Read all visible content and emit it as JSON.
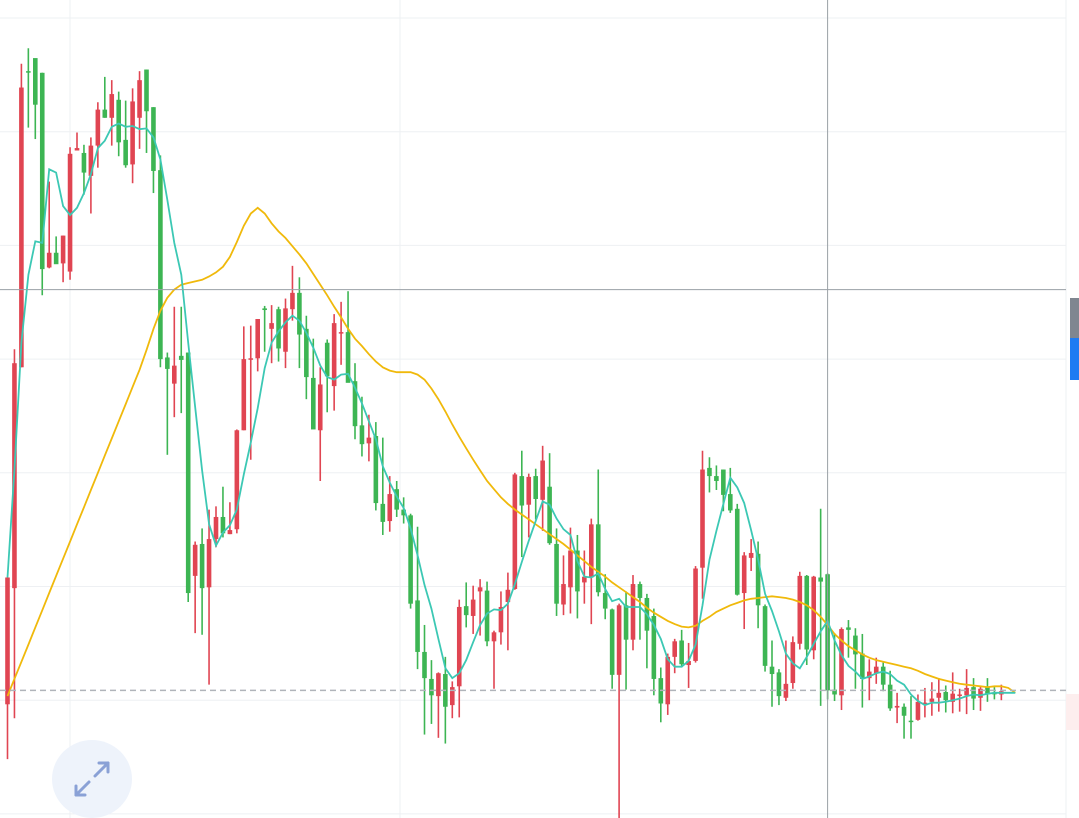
{
  "chart_data": {
    "type": "candlestick",
    "title": "",
    "xlabel": "",
    "ylabel": "",
    "grid": true,
    "legend": "none",
    "ylim": [
      0,
      100
    ],
    "colors": {
      "up": "#3db553",
      "down": "#e04552",
      "ma_fast": "#3cc8b4",
      "ma_slow": "#f0b90b",
      "grid": "#eef0f3",
      "crosshair": "#9aa0a6",
      "last_price_line": "#b0b4ba"
    },
    "candles": [
      [
        29.4,
        13.9,
        28.2,
        7.2
      ],
      [
        55.6,
        28.1,
        57.3,
        12.2
      ],
      [
        89.3,
        55.1,
        92.2,
        55.1
      ],
      [
        91.2,
        91.3,
        94.1,
        84.4
      ],
      [
        87.2,
        92.9,
        92.8,
        83.0
      ],
      [
        67.1,
        91.1,
        91.1,
        63.9
      ],
      [
        69.1,
        67.3,
        77.8,
        67.2
      ],
      [
        67.7,
        69.1,
        71.1,
        68.7
      ],
      [
        71.2,
        67.8,
        71.2,
        65.5
      ],
      [
        81.2,
        66.8,
        82.0,
        65.8
      ],
      [
        81.9,
        81.6,
        83.8,
        81.6
      ],
      [
        78.9,
        81.3,
        82.3,
        76.2
      ],
      [
        82.2,
        78.5,
        83.2,
        73.9
      ],
      [
        86.6,
        82.2,
        87.5,
        79.5
      ],
      [
        85.6,
        86.6,
        90.6,
        85.6
      ],
      [
        88.5,
        85.6,
        90.2,
        82.2
      ],
      [
        82.6,
        87.8,
        88.8,
        80.9
      ],
      [
        79.8,
        82.9,
        87.7,
        79.5
      ],
      [
        87.6,
        79.9,
        89.2,
        77.6
      ],
      [
        90.2,
        85.6,
        91.3,
        81.8
      ],
      [
        86.4,
        91.5,
        91.5,
        81.3
      ],
      [
        79.1,
        86.9,
        86.9,
        76.4
      ],
      [
        56.1,
        79.2,
        81.0,
        55.1
      ],
      [
        54.9,
        56.3,
        56.9,
        44.4
      ],
      [
        55.3,
        53.1,
        62.5,
        49.0
      ],
      [
        56.0,
        56.5,
        62.5,
        49.5
      ],
      [
        27.5,
        56.9,
        56.9,
        26.4
      ],
      [
        33.4,
        29.6,
        33.8,
        22.6
      ],
      [
        28.1,
        33.5,
        35.4,
        22.4
      ],
      [
        34.1,
        28.2,
        37.7,
        16.3
      ],
      [
        36.8,
        34.1,
        38.1,
        33.1
      ],
      [
        34.8,
        36.8,
        40.5,
        34.3
      ],
      [
        35.2,
        34.7,
        38.6,
        34.7
      ],
      [
        47.4,
        35.3,
        47.5,
        34.8
      ],
      [
        56.1,
        47.4,
        60.1,
        47.4
      ],
      [
        56.2,
        56.1,
        60.2,
        43.8
      ],
      [
        61.0,
        56.2,
        61.0,
        54.6
      ],
      [
        62.1,
        62.3,
        62.6,
        57.0
      ],
      [
        60.5,
        59.8,
        62.7,
        55.6
      ],
      [
        57.4,
        62.2,
        62.5,
        55.8
      ],
      [
        62.3,
        57.0,
        63.5,
        55.0
      ],
      [
        64.2,
        62.2,
        67.5,
        60.8
      ],
      [
        59.1,
        64.2,
        66.1,
        55.0
      ],
      [
        53.9,
        59.8,
        61.4,
        51.2
      ],
      [
        47.5,
        53.8,
        58.6,
        47.8
      ],
      [
        53.0,
        47.4,
        55.1,
        41.2
      ],
      [
        54.0,
        58.1,
        58.5,
        49.6
      ],
      [
        60.5,
        52.8,
        61.6,
        49.8
      ],
      [
        59.4,
        59.3,
        63.1,
        55.4
      ],
      [
        53.2,
        59.4,
        64.4,
        53.6
      ],
      [
        47.9,
        53.4,
        55.6,
        46.3
      ],
      [
        45.7,
        48.0,
        51.5,
        44.2
      ],
      [
        46.5,
        45.8,
        49.3,
        43.6
      ],
      [
        38.5,
        46.7,
        48.4,
        37.6
      ],
      [
        36.2,
        38.4,
        46.5,
        34.6
      ],
      [
        39.6,
        36.3,
        41.8,
        35.0
      ],
      [
        37.7,
        40.2,
        41.2,
        36.8
      ],
      [
        37.0,
        37.7,
        39.2,
        36.0
      ],
      [
        26.2,
        37.0,
        37.2,
        25.6
      ],
      [
        20.3,
        26.6,
        35.6,
        18.2
      ],
      [
        17.1,
        20.3,
        23.6,
        10.2
      ],
      [
        15.0,
        17.0,
        19.3,
        11.5
      ],
      [
        17.7,
        14.9,
        17.8,
        9.8
      ],
      [
        13.6,
        17.6,
        19.7,
        9.1
      ],
      [
        16.0,
        13.8,
        16.7,
        12.2
      ],
      [
        25.8,
        16.1,
        26.7,
        12.3
      ],
      [
        24.8,
        25.9,
        28.8,
        23.3
      ],
      [
        26.7,
        24.7,
        28.4,
        22.5
      ],
      [
        28.2,
        27.7,
        29.2,
        22.3
      ],
      [
        21.6,
        27.8,
        28.9,
        21.0
      ],
      [
        22.7,
        21.6,
        22.9,
        15.8
      ],
      [
        25.8,
        22.7,
        27.7,
        21.2
      ],
      [
        27.9,
        26.4,
        30.0,
        20.5
      ],
      [
        42.0,
        28.0,
        42.2,
        27.9
      ],
      [
        38.2,
        41.8,
        44.9,
        31.9
      ],
      [
        41.7,
        38.3,
        42.1,
        34.3
      ],
      [
        39.0,
        41.8,
        42.7,
        36.5
      ],
      [
        43.7,
        38.9,
        45.5,
        35.1
      ],
      [
        33.6,
        40.5,
        44.6,
        33.4
      ],
      [
        26.2,
        33.5,
        35.4,
        24.7
      ],
      [
        28.6,
        26.1,
        32.1,
        24.8
      ],
      [
        32.7,
        28.2,
        35.5,
        25.0
      ],
      [
        27.7,
        32.7,
        34.6,
        24.4
      ],
      [
        29.5,
        28.8,
        32.7,
        26.2
      ],
      [
        35.9,
        29.4,
        36.6,
        23.7
      ],
      [
        27.6,
        35.9,
        42.6,
        27.1
      ],
      [
        25.6,
        27.5,
        29.8,
        24.3
      ],
      [
        17.5,
        25.5,
        25.6,
        15.8
      ],
      [
        26.0,
        17.5,
        26.2,
        0.0
      ],
      [
        21.8,
        26.0,
        27.7,
        15.7
      ],
      [
        28.6,
        21.8,
        29.7,
        20.5
      ],
      [
        26.9,
        28.6,
        28.9,
        21.8
      ],
      [
        22.9,
        26.9,
        27.4,
        18.3
      ],
      [
        17.0,
        24.7,
        25.6,
        15.0
      ],
      [
        14.0,
        17.1,
        18.4,
        11.7
      ],
      [
        19.7,
        13.9,
        20.1,
        12.6
      ],
      [
        21.6,
        19.7,
        21.9,
        17.7
      ],
      [
        18.8,
        21.7,
        23.0,
        18.4
      ],
      [
        19.2,
        18.7,
        21.4,
        15.9
      ],
      [
        30.5,
        19.2,
        30.8,
        19.0
      ],
      [
        42.6,
        30.6,
        44.9,
        26.8
      ],
      [
        41.8,
        42.8,
        44.1,
        39.8
      ],
      [
        41.2,
        41.8,
        43.1,
        40.1
      ],
      [
        39.5,
        42.6,
        42.6,
        37.5
      ],
      [
        37.6,
        39.6,
        42.8,
        37.3
      ],
      [
        27.3,
        37.8,
        38.4,
        27.2
      ],
      [
        32.1,
        27.5,
        32.5,
        23.1
      ],
      [
        32.4,
        31.8,
        34.1,
        30.2
      ],
      [
        26.0,
        32.3,
        33.8,
        23.2
      ],
      [
        18.6,
        25.9,
        26.1,
        17.9
      ],
      [
        17.6,
        18.5,
        21.7,
        13.6
      ],
      [
        14.9,
        17.8,
        18.2,
        13.8
      ],
      [
        16.4,
        14.7,
        21.7,
        14.3
      ],
      [
        21.5,
        16.5,
        22.2,
        15.8
      ],
      [
        29.6,
        21.3,
        30.1,
        20.6
      ],
      [
        20.6,
        29.6,
        29.7,
        18.7
      ],
      [
        29.5,
        20.5,
        29.6,
        19.4
      ],
      [
        28.9,
        29.4,
        37.8,
        13.7
      ],
      [
        15.6,
        29.8,
        29.9,
        14.5
      ],
      [
        15.1,
        15.7,
        22.6,
        14.3
      ],
      [
        23.1,
        15.0,
        23.3,
        13.2
      ],
      [
        23.0,
        23.3,
        24.2,
        19.6
      ],
      [
        20.0,
        22.3,
        23.2,
        15.8
      ],
      [
        17.0,
        20.1,
        22.5,
        13.5
      ],
      [
        17.9,
        17.1,
        19.4,
        14.4
      ],
      [
        18.5,
        17.7,
        19.6,
        16.4
      ],
      [
        16.3,
        18.5,
        19.0,
        15.5
      ],
      [
        13.4,
        16.3,
        18.0,
        13.1
      ],
      [
        13.7,
        13.5,
        15.3,
        11.6
      ],
      [
        12.5,
        13.6,
        14.0,
        9.7
      ],
      [
        11.9,
        11.9,
        14.9,
        9.7
      ],
      [
        14.2,
        12.0,
        15.1,
        11.9
      ],
      [
        14.1,
        14.0,
        15.9,
        12.3
      ],
      [
        14.6,
        14.2,
        16.6,
        12.5
      ],
      [
        15.3,
        14.7,
        17.1,
        13.0
      ],
      [
        14.4,
        15.4,
        16.2,
        12.9
      ],
      [
        15.2,
        14.2,
        17.8,
        12.8
      ],
      [
        15.1,
        15.0,
        15.8,
        13.0
      ],
      [
        15.9,
        15.0,
        18.2,
        12.7
      ],
      [
        14.6,
        16.0,
        17.1,
        13.2
      ],
      [
        15.8,
        14.7,
        16.1,
        13.1
      ],
      [
        15.1,
        16.0,
        17.1,
        14.2
      ],
      [
        15.2,
        15.3,
        16.0,
        14.5
      ],
      [
        15.5,
        15.1,
        16.3,
        14.4
      ]
    ],
    "ma_fast": [
      29.4,
      42.5,
      58.1,
      66.4,
      70.5,
      70.3,
      79.3,
      78.9,
      74.8,
      73.7,
      74.6,
      76.4,
      78.7,
      81.9,
      82.8,
      84.5,
      84.9,
      84.5,
      84.6,
      84.2,
      84.3,
      83.2,
      80.5,
      75.6,
      70.3,
      66.4,
      58.1,
      50.2,
      42.5,
      35.9,
      33.3,
      34.9,
      35.8,
      37.7,
      42.0,
      45.9,
      50.1,
      55.0,
      58.1,
      59.5,
      60.6,
      61.4,
      60.8,
      59.3,
      57.5,
      55.3,
      53.9,
      53.6,
      54.2,
      54.3,
      52.6,
      50.7,
      48.5,
      46.3,
      43.0,
      41.0,
      39.3,
      37.9,
      35.4,
      32.1,
      28.5,
      25.6,
      21.9,
      18.3,
      17.1,
      17.7,
      19.3,
      21.5,
      23.6,
      25.0,
      25.5,
      25.4,
      26.2,
      28.6,
      31.3,
      33.9,
      36.3,
      38.7,
      38.3,
      36.6,
      35.3,
      34.6,
      31.4,
      29.5,
      29.4,
      29.9,
      28.0,
      26.5,
      26.8,
      25.8,
      25.8,
      25.8,
      24.9,
      23.6,
      21.9,
      19.4,
      18.5,
      18.5,
      19.2,
      21.2,
      26.0,
      31.6,
      35.1,
      38.4,
      41.6,
      40.4,
      38.5,
      35.2,
      31.6,
      27.4,
      25.3,
      22.8,
      20.1,
      18.9,
      18.3,
      19.7,
      21.3,
      22.8,
      24.1,
      21.7,
      19.9,
      18.6,
      17.9,
      17.0,
      17.3,
      17.7,
      17.9,
      17.6,
      16.8,
      16.3,
      15.1,
      14.3,
      13.8,
      14.1,
      14.1,
      14.2,
      14.4,
      14.6,
      14.9,
      15.1,
      15.0,
      15.2,
      15.3,
      15.3,
      15.3,
      15.3
    ],
    "ma_slow": [
      14.9,
      17.0,
      19.1,
      21.2,
      23.3,
      25.4,
      27.5,
      29.6,
      31.7,
      33.8,
      35.9,
      38.0,
      40.1,
      42.2,
      44.3,
      46.4,
      48.5,
      50.6,
      52.7,
      54.8,
      57.2,
      59.8,
      62.0,
      63.6,
      64.6,
      65.2,
      65.4,
      65.6,
      65.8,
      66.2,
      66.7,
      67.4,
      68.6,
      70.4,
      72.4,
      73.9,
      74.6,
      73.9,
      72.7,
      71.7,
      70.9,
      69.9,
      68.9,
      67.8,
      66.5,
      65.2,
      63.9,
      62.5,
      61.2,
      59.8,
      58.6,
      57.7,
      56.7,
      55.8,
      55.1,
      54.7,
      54.5,
      54.5,
      54.5,
      54.2,
      53.6,
      52.5,
      51.2,
      49.7,
      48.1,
      46.6,
      45.2,
      43.8,
      42.5,
      41.2,
      40.2,
      39.2,
      38.4,
      37.7,
      37.1,
      36.5,
      35.9,
      35.3,
      34.7,
      34.1,
      33.5,
      32.8,
      32.1,
      31.4,
      30.7,
      30.1,
      29.5,
      28.8,
      28.2,
      27.6,
      27.0,
      26.4,
      25.7,
      25.1,
      24.6,
      24.1,
      23.7,
      23.4,
      23.3,
      23.5,
      24.1,
      24.6,
      25.2,
      25.6,
      26.0,
      26.3,
      26.6,
      26.8,
      26.9,
      27.0,
      27.1,
      27.0,
      26.9,
      26.7,
      26.4,
      26.0,
      25.4,
      24.6,
      23.6,
      22.5,
      21.7,
      21.0,
      20.5,
      20.0,
      19.6,
      19.3,
      19.1,
      18.9,
      18.7,
      18.5,
      18.3,
      18.0,
      17.6,
      17.3,
      17.0,
      16.8,
      16.6,
      16.4,
      16.3,
      16.2,
      16.1,
      16.0,
      16.1,
      16.1,
      15.9,
      15.3
    ],
    "last_price": 15.6,
    "crosshair": {
      "x_index": 118,
      "y_value": 64.6
    }
  },
  "controls": {
    "expand_icon": "expand-arrows-icon"
  }
}
